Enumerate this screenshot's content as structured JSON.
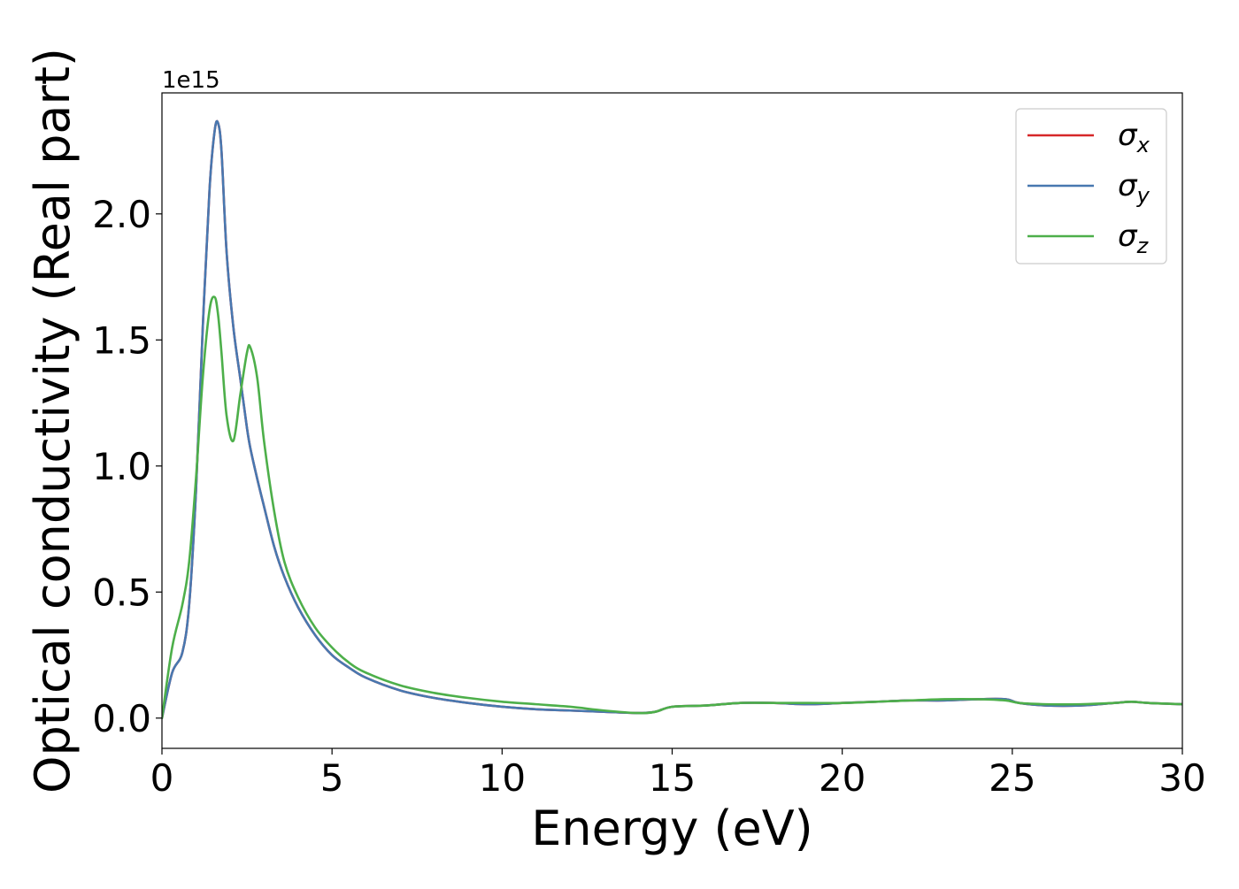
{
  "chart_data": {
    "type": "line",
    "title": "",
    "xlabel": "Energy (eV)",
    "ylabel": "Optical conductivity (Real part)",
    "y_offset_text": "1e15",
    "xlim": [
      0,
      30
    ],
    "ylim": [
      -0.12,
      2.48
    ],
    "x_ticks": [
      0,
      5,
      10,
      15,
      20,
      25,
      30
    ],
    "x_tick_labels": [
      "0",
      "5",
      "10",
      "15",
      "20",
      "25",
      "30"
    ],
    "y_ticks": [
      0.0,
      0.5,
      1.0,
      1.5,
      2.0
    ],
    "y_tick_labels": [
      "0.0",
      "0.5",
      "1.0",
      "1.5",
      "2.0"
    ],
    "grid": false,
    "legend_position": "top-right",
    "x": [
      0,
      0.3,
      0.6,
      0.8,
      1.0,
      1.2,
      1.4,
      1.55,
      1.65,
      1.75,
      1.9,
      2.1,
      2.3,
      2.5,
      2.6,
      2.8,
      3.0,
      3.3,
      3.6,
      4.0,
      4.5,
      5.0,
      5.5,
      6.0,
      7.0,
      8.0,
      9.0,
      10.0,
      11.0,
      12.0,
      13.0,
      14.0,
      14.5,
      15.0,
      16.0,
      17.0,
      18.0,
      19.0,
      20.0,
      21.0,
      22.0,
      23.0,
      24.0,
      24.8,
      25.2,
      26.0,
      27.0,
      28.0,
      28.5,
      29.0,
      30.0
    ],
    "series": [
      {
        "name": "σ_x",
        "symbol": "σ",
        "subscript": "x",
        "color": "#d62728",
        "values": [
          0.0,
          0.18,
          0.26,
          0.45,
          0.9,
          1.55,
          2.1,
          2.33,
          2.36,
          2.25,
          1.85,
          1.55,
          1.35,
          1.15,
          1.07,
          0.95,
          0.84,
          0.68,
          0.56,
          0.44,
          0.33,
          0.25,
          0.2,
          0.16,
          0.11,
          0.08,
          0.06,
          0.045,
          0.035,
          0.03,
          0.025,
          0.02,
          0.025,
          0.045,
          0.05,
          0.06,
          0.06,
          0.055,
          0.06,
          0.065,
          0.07,
          0.07,
          0.075,
          0.075,
          0.06,
          0.05,
          0.05,
          0.06,
          0.065,
          0.06,
          0.055
        ]
      },
      {
        "name": "σ_y",
        "symbol": "σ",
        "subscript": "y",
        "color": "#4878b0",
        "values": [
          0.0,
          0.18,
          0.26,
          0.45,
          0.9,
          1.55,
          2.1,
          2.33,
          2.36,
          2.25,
          1.85,
          1.55,
          1.35,
          1.15,
          1.07,
          0.95,
          0.84,
          0.68,
          0.56,
          0.44,
          0.33,
          0.25,
          0.2,
          0.16,
          0.11,
          0.08,
          0.06,
          0.045,
          0.035,
          0.03,
          0.025,
          0.02,
          0.025,
          0.045,
          0.05,
          0.06,
          0.06,
          0.055,
          0.06,
          0.065,
          0.07,
          0.07,
          0.075,
          0.075,
          0.06,
          0.05,
          0.05,
          0.06,
          0.065,
          0.06,
          0.055
        ]
      },
      {
        "name": "σ_z",
        "symbol": "σ",
        "subscript": "z",
        "color": "#4daf4a",
        "values": [
          0.0,
          0.28,
          0.45,
          0.62,
          0.95,
          1.35,
          1.62,
          1.67,
          1.6,
          1.45,
          1.2,
          1.1,
          1.28,
          1.45,
          1.47,
          1.35,
          1.1,
          0.82,
          0.62,
          0.48,
          0.36,
          0.28,
          0.22,
          0.18,
          0.13,
          0.1,
          0.08,
          0.065,
          0.055,
          0.045,
          0.03,
          0.02,
          0.025,
          0.045,
          0.05,
          0.06,
          0.06,
          0.06,
          0.06,
          0.065,
          0.07,
          0.075,
          0.075,
          0.07,
          0.06,
          0.055,
          0.055,
          0.06,
          0.065,
          0.06,
          0.055
        ]
      }
    ]
  }
}
